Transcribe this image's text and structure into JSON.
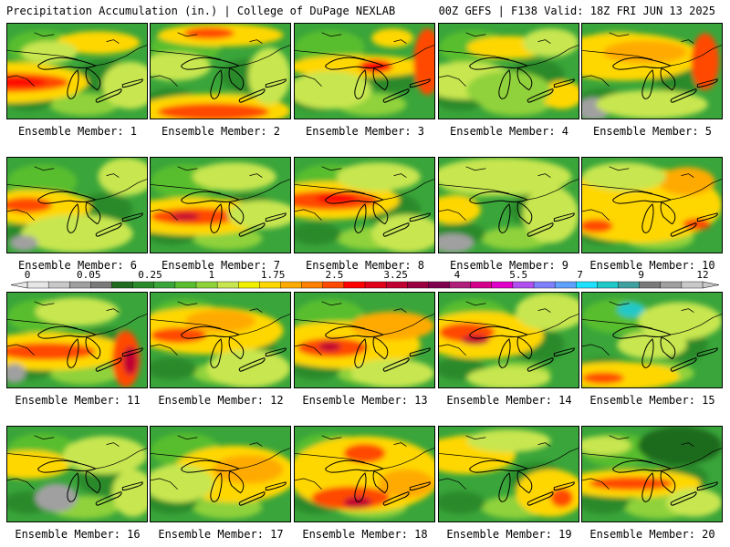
{
  "header": {
    "title": "Precipitation Accumulation (in.) | College of DuPage NEXLAB",
    "valid": "00Z GEFS | F138 Valid: 18Z FRI JUN 13 2025"
  },
  "colorbar": {
    "tick_labels": [
      "0",
      "0.05",
      "0.25",
      "1",
      "1.75",
      "2.5",
      "3.25",
      "4",
      "5.5",
      "7",
      "9",
      "12"
    ],
    "colors": [
      "#e6e6e6",
      "#c8c8c8",
      "#a0a0a0",
      "#7a7a7a",
      "#1f6b1f",
      "#2a8a2a",
      "#3aa53a",
      "#58be2e",
      "#8fd23a",
      "#c8e650",
      "#f0f000",
      "#ffd700",
      "#ffaa00",
      "#ff8000",
      "#ff4a00",
      "#ff0000",
      "#e0001a",
      "#c00030",
      "#9a0040",
      "#800050",
      "#b0207a",
      "#d4008c",
      "#e000c8",
      "#b050f0",
      "#8080ff",
      "#60a0ff",
      "#20e0ff",
      "#20c8c8",
      "#40a0a0",
      "#7a7a7a",
      "#a0a0a0",
      "#c8c8c8"
    ]
  },
  "panels": [
    {
      "label": "Ensemble Member: 1",
      "features": [
        [
          "#ffd700",
          -0.02,
          0.62,
          0.6,
          0.22
        ],
        [
          "#ff4a00",
          0.02,
          0.62,
          0.42,
          0.1
        ],
        [
          "#ff0000",
          0.08,
          0.62,
          0.2,
          0.05
        ],
        [
          "#ffd700",
          0.65,
          0.2,
          0.3,
          0.12
        ],
        [
          "#c8e650",
          0.88,
          0.65,
          0.2,
          0.25
        ],
        [
          "#c8e650",
          0.3,
          0.3,
          0.2,
          0.12
        ]
      ]
    },
    {
      "label": "Ensemble Member: 2",
      "features": [
        [
          "#ffd700",
          0.45,
          0.92,
          0.55,
          0.18
        ],
        [
          "#ff4a00",
          0.45,
          0.93,
          0.4,
          0.09
        ],
        [
          "#ffd700",
          0.5,
          0.12,
          0.45,
          0.12
        ],
        [
          "#ff4a00",
          0.42,
          0.1,
          0.18,
          0.06
        ],
        [
          "#c8e650",
          0.18,
          0.45,
          0.25,
          0.15
        ],
        [
          "#c8e650",
          0.85,
          0.55,
          0.15,
          0.3
        ]
      ]
    },
    {
      "label": "Ensemble Member: 3",
      "features": [
        [
          "#ffd700",
          0.45,
          0.45,
          0.5,
          0.12
        ],
        [
          "#ff0000",
          0.58,
          0.45,
          0.12,
          0.07
        ],
        [
          "#ff4a00",
          0.95,
          0.4,
          0.1,
          0.35
        ],
        [
          "#c8e650",
          0.25,
          0.7,
          0.3,
          0.2
        ],
        [
          "#ffd700",
          0.7,
          0.15,
          0.15,
          0.1
        ]
      ]
    },
    {
      "label": "Ensemble Member: 4",
      "features": [
        [
          "#c8e650",
          0.2,
          0.6,
          0.35,
          0.2
        ],
        [
          "#ffd700",
          0.5,
          0.25,
          0.3,
          0.12
        ],
        [
          "#c8e650",
          0.8,
          0.2,
          0.2,
          0.15
        ],
        [
          "#ffd700",
          0.88,
          0.75,
          0.15,
          0.15
        ],
        [
          "#8fd23a",
          0.5,
          0.7,
          0.3,
          0.2
        ]
      ]
    },
    {
      "label": "Ensemble Member: 5",
      "features": [
        [
          "#ffd700",
          0.3,
          0.35,
          0.55,
          0.25
        ],
        [
          "#ff4a00",
          0.88,
          0.4,
          0.1,
          0.3
        ],
        [
          "#ffaa00",
          0.45,
          0.3,
          0.3,
          0.12
        ],
        [
          "#a0a0a0",
          0.08,
          0.9,
          0.12,
          0.12
        ],
        [
          "#c8e650",
          0.5,
          0.85,
          0.4,
          0.15
        ]
      ]
    },
    {
      "label": "Ensemble Member: 6",
      "features": [
        [
          "#ffd700",
          0.18,
          0.52,
          0.42,
          0.18
        ],
        [
          "#ff4a00",
          0.14,
          0.5,
          0.18,
          0.08
        ],
        [
          "#c8e650",
          0.5,
          0.8,
          0.4,
          0.2
        ],
        [
          "#c8e650",
          0.85,
          0.2,
          0.2,
          0.2
        ],
        [
          "#a0a0a0",
          0.12,
          0.9,
          0.1,
          0.08
        ]
      ]
    },
    {
      "label": "Ensemble Member: 7",
      "features": [
        [
          "#ffd700",
          0.3,
          0.62,
          0.55,
          0.2
        ],
        [
          "#ff4a00",
          0.32,
          0.62,
          0.32,
          0.09
        ],
        [
          "#c00030",
          0.25,
          0.62,
          0.1,
          0.04
        ],
        [
          "#c8e650",
          0.8,
          0.6,
          0.25,
          0.15
        ],
        [
          "#c8e650",
          0.6,
          0.2,
          0.3,
          0.15
        ]
      ]
    },
    {
      "label": "Ensemble Member: 8",
      "features": [
        [
          "#ffd700",
          0.25,
          0.45,
          0.5,
          0.2
        ],
        [
          "#ff4a00",
          0.25,
          0.45,
          0.35,
          0.1
        ],
        [
          "#ff0000",
          0.3,
          0.43,
          0.15,
          0.05
        ],
        [
          "#c8e650",
          0.6,
          0.2,
          0.3,
          0.15
        ],
        [
          "#c8e650",
          0.8,
          0.8,
          0.25,
          0.2
        ]
      ]
    },
    {
      "label": "Ensemble Member: 9",
      "features": [
        [
          "#c8e650",
          0.45,
          0.2,
          0.5,
          0.2
        ],
        [
          "#ffd700",
          0.1,
          0.55,
          0.2,
          0.15
        ],
        [
          "#a0a0a0",
          0.1,
          0.9,
          0.15,
          0.1
        ],
        [
          "#c8e650",
          0.8,
          0.6,
          0.2,
          0.3
        ]
      ]
    },
    {
      "label": "Ensemble Member: 10",
      "features": [
        [
          "#ffd700",
          0.4,
          0.5,
          0.6,
          0.4
        ],
        [
          "#ff4a00",
          0.1,
          0.72,
          0.12,
          0.07
        ],
        [
          "#ff4a00",
          0.82,
          0.7,
          0.1,
          0.06
        ],
        [
          "#ffaa00",
          0.75,
          0.25,
          0.2,
          0.15
        ],
        [
          "#c8e650",
          0.3,
          0.2,
          0.3,
          0.15
        ]
      ]
    },
    {
      "label": "Ensemble Member: 11",
      "features": [
        [
          "#ffd700",
          0.3,
          0.62,
          0.55,
          0.2
        ],
        [
          "#ff4a00",
          0.28,
          0.62,
          0.35,
          0.09
        ],
        [
          "#ff4a00",
          0.85,
          0.7,
          0.1,
          0.3
        ],
        [
          "#c00030",
          0.88,
          0.72,
          0.05,
          0.15
        ],
        [
          "#a0a0a0",
          0.05,
          0.85,
          0.08,
          0.1
        ],
        [
          "#c8e650",
          0.5,
          0.2,
          0.3,
          0.15
        ]
      ]
    },
    {
      "label": "Ensemble Member: 12",
      "features": [
        [
          "#ffd700",
          0.4,
          0.4,
          0.55,
          0.25
        ],
        [
          "#ff4a00",
          0.2,
          0.45,
          0.2,
          0.08
        ],
        [
          "#ffaa00",
          0.5,
          0.3,
          0.25,
          0.12
        ],
        [
          "#c8e650",
          0.7,
          0.8,
          0.3,
          0.2
        ]
      ]
    },
    {
      "label": "Ensemble Member: 13",
      "features": [
        [
          "#ffd700",
          0.35,
          0.55,
          0.55,
          0.25
        ],
        [
          "#ff4a00",
          0.27,
          0.58,
          0.25,
          0.1
        ],
        [
          "#c00030",
          0.25,
          0.57,
          0.08,
          0.05
        ],
        [
          "#ffaa00",
          0.7,
          0.35,
          0.3,
          0.15
        ],
        [
          "#c8e650",
          0.7,
          0.85,
          0.3,
          0.15
        ]
      ]
    },
    {
      "label": "Ensemble Member: 14",
      "features": [
        [
          "#ffd700",
          0.3,
          0.45,
          0.45,
          0.25
        ],
        [
          "#ff4a00",
          0.2,
          0.42,
          0.2,
          0.1
        ],
        [
          "#c00030",
          0.26,
          0.5,
          0.1,
          0.05
        ],
        [
          "#c8e650",
          0.8,
          0.2,
          0.25,
          0.2
        ],
        [
          "#c8e650",
          0.5,
          0.9,
          0.3,
          0.12
        ]
      ]
    },
    {
      "label": "Ensemble Member: 15",
      "features": [
        [
          "#ffd700",
          0.25,
          0.88,
          0.45,
          0.15
        ],
        [
          "#ff4a00",
          0.15,
          0.9,
          0.15,
          0.06
        ],
        [
          "#20c8c8",
          0.35,
          0.18,
          0.1,
          0.08
        ],
        [
          "#c8e650",
          0.7,
          0.3,
          0.3,
          0.2
        ],
        [
          "#c8e650",
          0.5,
          0.55,
          0.25,
          0.15
        ]
      ]
    },
    {
      "label": "Ensemble Member: 16",
      "features": [
        [
          "#ffd700",
          0.15,
          0.4,
          0.3,
          0.15
        ],
        [
          "#c8e650",
          0.7,
          0.3,
          0.3,
          0.2
        ],
        [
          "#a0a0a0",
          0.35,
          0.75,
          0.15,
          0.15
        ],
        [
          "#c8e650",
          0.9,
          0.7,
          0.15,
          0.25
        ]
      ]
    },
    {
      "label": "Ensemble Member: 17",
      "features": [
        [
          "#ffd700",
          0.6,
          0.5,
          0.45,
          0.3
        ],
        [
          "#ffaa00",
          0.7,
          0.45,
          0.25,
          0.15
        ],
        [
          "#c8e650",
          0.2,
          0.6,
          0.25,
          0.2
        ]
      ]
    },
    {
      "label": "Ensemble Member: 18",
      "features": [
        [
          "#ffd700",
          0.5,
          0.5,
          0.55,
          0.4
        ],
        [
          "#ff4a00",
          0.4,
          0.75,
          0.28,
          0.12
        ],
        [
          "#c00030",
          0.45,
          0.8,
          0.1,
          0.06
        ],
        [
          "#ff4a00",
          0.5,
          0.28,
          0.15,
          0.1
        ],
        [
          "#ffaa00",
          0.8,
          0.6,
          0.2,
          0.15
        ]
      ]
    },
    {
      "label": "Ensemble Member: 19",
      "features": [
        [
          "#ffd700",
          0.2,
          0.3,
          0.35,
          0.2
        ],
        [
          "#ffd700",
          0.8,
          0.7,
          0.25,
          0.25
        ],
        [
          "#ff4a00",
          0.88,
          0.75,
          0.08,
          0.1
        ],
        [
          "#c8e650",
          0.5,
          0.15,
          0.3,
          0.12
        ]
      ]
    },
    {
      "label": "Ensemble Member: 20",
      "features": [
        [
          "#ffd700",
          0.35,
          0.6,
          0.5,
          0.15
        ],
        [
          "#ff4a00",
          0.35,
          0.6,
          0.3,
          0.07
        ],
        [
          "#1f6b1f",
          0.7,
          0.2,
          0.3,
          0.2
        ],
        [
          "#c8e650",
          0.8,
          0.8,
          0.2,
          0.15
        ],
        [
          "#c8e650",
          0.15,
          0.2,
          0.2,
          0.1
        ]
      ]
    }
  ]
}
